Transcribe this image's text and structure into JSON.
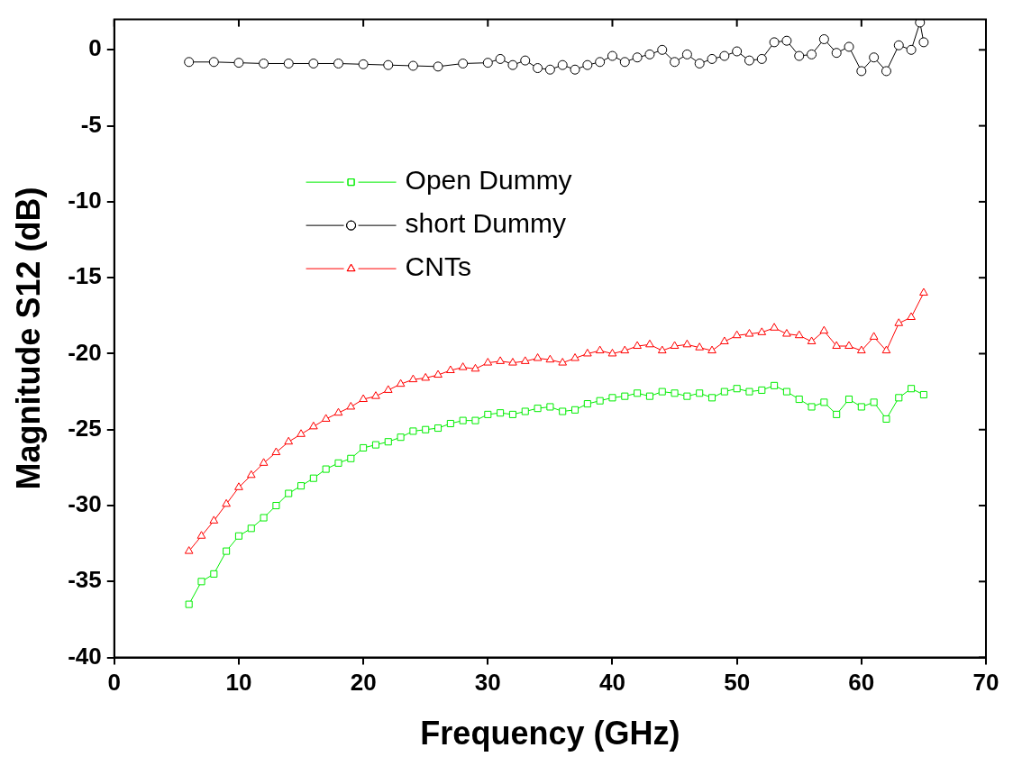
{
  "chart_data": {
    "type": "line",
    "xlabel": "Frequency (GHz)",
    "ylabel": "Magnitude S12 (dB)",
    "xlim": [
      0,
      70
    ],
    "xticks": [
      0,
      10,
      20,
      30,
      40,
      50,
      60,
      70
    ],
    "ylim": [
      -40,
      2
    ],
    "yticks": [
      -40,
      -35,
      -30,
      -25,
      -20,
      -15,
      -10,
      -5,
      0
    ],
    "grid": false,
    "legend": "top left",
    "line_style": "solid",
    "series": [
      {
        "name": "Open Dummy",
        "color": "#00ee00",
        "marker": "square",
        "x": [
          6,
          7,
          8,
          9,
          10,
          11,
          12,
          13,
          14,
          15,
          16,
          17,
          18,
          19,
          20,
          21,
          22,
          23,
          24,
          25,
          26,
          27,
          28,
          29,
          30,
          31,
          32,
          33,
          34,
          35,
          36,
          37,
          38,
          39,
          40,
          41,
          42,
          43,
          44,
          45,
          46,
          47,
          48,
          49,
          50,
          51,
          52,
          53,
          54,
          55,
          56,
          57,
          58,
          59,
          60,
          61,
          62,
          63,
          64,
          65
        ],
        "values": [
          -36.5,
          -35,
          -34.5,
          -33,
          -32,
          -31.5,
          -30.8,
          -30,
          -29.2,
          -28.7,
          -28.2,
          -27.6,
          -27.2,
          -26.9,
          -26.2,
          -26,
          -25.8,
          -25.5,
          -25.1,
          -25,
          -24.9,
          -24.6,
          -24.4,
          -24.4,
          -24,
          -23.9,
          -24,
          -23.8,
          -23.6,
          -23.5,
          -23.8,
          -23.7,
          -23.3,
          -23.1,
          -22.9,
          -22.8,
          -22.6,
          -22.8,
          -22.5,
          -22.6,
          -22.8,
          -22.6,
          -22.9,
          -22.5,
          -22.3,
          -22.5,
          -22.4,
          -22.1,
          -22.5,
          -23,
          -23.5,
          -23.2,
          -24,
          -23,
          -23.5,
          -23.2,
          -24.3,
          -22.9,
          -22.3,
          -22.7
        ]
      },
      {
        "name": "short Dummy",
        "color": "#000000",
        "marker": "circle",
        "x": [
          6,
          8,
          10,
          12,
          14,
          16,
          18,
          20,
          22,
          24,
          26,
          28,
          30,
          31,
          32,
          33,
          34,
          35,
          36,
          37,
          38,
          39,
          40,
          41,
          42,
          43,
          44,
          45,
          46,
          47,
          48,
          49,
          50,
          51,
          52,
          53,
          54,
          55,
          56,
          57,
          58,
          59,
          60,
          61,
          62,
          63,
          64,
          64.7,
          65
        ],
        "values": [
          -0.8,
          -0.8,
          -0.85,
          -0.9,
          -0.9,
          -0.9,
          -0.9,
          -0.95,
          -1,
          -1.05,
          -1.1,
          -0.9,
          -0.85,
          -0.6,
          -1,
          -0.7,
          -1.2,
          -1.3,
          -1,
          -1.3,
          -1,
          -0.8,
          -0.4,
          -0.8,
          -0.5,
          -0.3,
          0,
          -0.8,
          -0.3,
          -0.9,
          -0.6,
          -0.4,
          -0.1,
          -0.7,
          -0.6,
          0.5,
          0.6,
          -0.4,
          -0.3,
          0.7,
          -0.2,
          0.2,
          -1.4,
          -0.5,
          -1.4,
          0.3,
          0,
          1.8,
          0.5
        ]
      },
      {
        "name": "CNTs",
        "color": "#ff0000",
        "marker": "triangle",
        "x": [
          6,
          7,
          8,
          9,
          10,
          11,
          12,
          13,
          14,
          15,
          16,
          17,
          18,
          19,
          20,
          21,
          22,
          23,
          24,
          25,
          26,
          27,
          28,
          29,
          30,
          31,
          32,
          33,
          34,
          35,
          36,
          37,
          38,
          39,
          40,
          41,
          42,
          43,
          44,
          45,
          46,
          47,
          48,
          49,
          50,
          51,
          52,
          53,
          54,
          55,
          56,
          57,
          58,
          59,
          60,
          61,
          62,
          63,
          64,
          65
        ],
        "values": [
          -33,
          -32,
          -31,
          -29.9,
          -28.8,
          -28,
          -27.2,
          -26.5,
          -25.8,
          -25.3,
          -24.8,
          -24.3,
          -23.9,
          -23.5,
          -23,
          -22.8,
          -22.4,
          -22,
          -21.7,
          -21.6,
          -21.4,
          -21.1,
          -20.9,
          -21,
          -20.6,
          -20.5,
          -20.6,
          -20.5,
          -20.3,
          -20.4,
          -20.6,
          -20.3,
          -20,
          -19.8,
          -20,
          -19.8,
          -19.5,
          -19.4,
          -19.8,
          -19.5,
          -19.4,
          -19.6,
          -19.8,
          -19.2,
          -18.8,
          -18.7,
          -18.6,
          -18.3,
          -18.7,
          -18.8,
          -19.2,
          -18.5,
          -19.5,
          -19.5,
          -19.8,
          -18.9,
          -19.8,
          -18,
          -17.6,
          -16
        ]
      }
    ]
  }
}
